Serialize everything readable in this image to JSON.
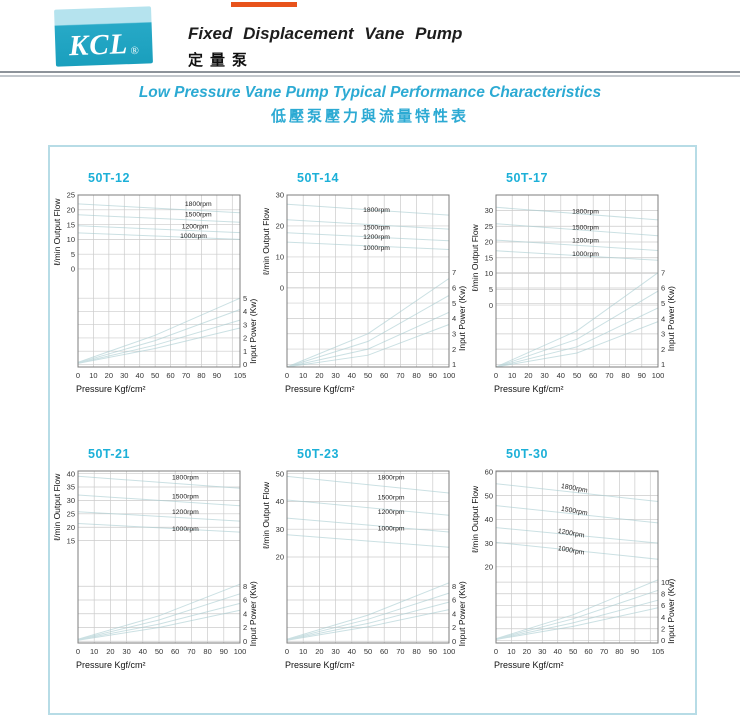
{
  "page": {
    "background": "#ffffff"
  },
  "top_accent": {
    "color": "#e8531b"
  },
  "header": {
    "logo_text": "KCL",
    "logo_reg": "®",
    "title_en": "Fixed Displacement Vane Pump",
    "title_zh": "定量泵",
    "logo_colors": {
      "top": "#b5e3ee",
      "bottom": "#1a9fbd"
    }
  },
  "section": {
    "title_en": "Low Pressure Vane Pump Typical Performance Characteristics",
    "title_zh": "低壓泵壓力與流量特性表",
    "accent_color": "#2caad3"
  },
  "panel": {
    "border_color": "#b7dce6"
  },
  "chart_style": {
    "grid_color": "#cbcbcb",
    "border_color": "#7c7c7c",
    "curve_color": "#a9cdd1",
    "tick_color": "#333333",
    "label_color": "#111111",
    "title_color": "#1cb0d8"
  },
  "chart_data": [
    {
      "type": "line",
      "title": "50T-12",
      "xlabel": "Pressure Kgf/cm²",
      "ylabel_left": "ℓ/min Output Flow",
      "ylabel_right": "Input Power (Kw)",
      "x_min": 0,
      "x_max": 105,
      "x_tick_vals": [
        0,
        10,
        20,
        30,
        40,
        50,
        60,
        70,
        80,
        90,
        105
      ],
      "x_grid": [
        10,
        20,
        30,
        40,
        50,
        60,
        70,
        80,
        90,
        100
      ],
      "flow_axis": {
        "ticks": [
          25,
          20,
          15,
          10,
          5,
          0
        ],
        "v1": 25,
        "f1": 0.0,
        "v2": 0,
        "f2": 0.43
      },
      "power_axis": {
        "ticks": [
          5,
          4,
          3,
          2,
          1,
          0
        ],
        "v1": 5,
        "f1": 0.6,
        "v2": 0,
        "f2": 0.985
      },
      "legend": [
        {
          "label": "1800rpm",
          "fx": 0.66,
          "fy": 0.065
        },
        {
          "label": "1500rpm",
          "fx": 0.66,
          "fy": 0.125
        },
        {
          "label": "1200rpm",
          "fx": 0.64,
          "fy": 0.195
        },
        {
          "label": "1000rpm",
          "fx": 0.63,
          "fy": 0.25
        }
      ],
      "legend_rotation": 0,
      "series": [
        {
          "name": "1800rpm",
          "flow": [
            [
              0,
              22
            ],
            [
              105,
              19
            ]
          ],
          "power": [
            [
              0,
              0.15
            ],
            [
              50,
              2.2
            ],
            [
              105,
              5.0
            ]
          ]
        },
        {
          "name": "1500rpm",
          "flow": [
            [
              0,
              18.3
            ],
            [
              105,
              15.8
            ]
          ],
          "power": [
            [
              0,
              0.12
            ],
            [
              50,
              1.8
            ],
            [
              105,
              4.15
            ]
          ]
        },
        {
          "name": "1200rpm",
          "flow": [
            [
              0,
              14.6
            ],
            [
              105,
              12.3
            ]
          ],
          "power": [
            [
              0,
              0.1
            ],
            [
              50,
              1.45
            ],
            [
              105,
              3.35
            ]
          ]
        },
        {
          "name": "1000rpm",
          "flow": [
            [
              0,
              12.2
            ],
            [
              105,
              10.0
            ]
          ],
          "power": [
            [
              0,
              0.08
            ],
            [
              50,
              1.2
            ],
            [
              105,
              2.75
            ]
          ]
        }
      ]
    },
    {
      "type": "line",
      "title": "50T-14",
      "xlabel": "Pressure Kgf/cm²",
      "ylabel_left": "ℓ/min Output Flow",
      "ylabel_right": "Input Power (Kw)",
      "x_min": 0,
      "x_max": 100,
      "x_tick_vals": [
        0,
        10,
        20,
        30,
        40,
        50,
        60,
        70,
        80,
        90,
        100
      ],
      "x_grid": [
        10,
        20,
        30,
        40,
        50,
        60,
        70,
        80,
        90
      ],
      "flow_axis": {
        "ticks": [
          30,
          20,
          10,
          0
        ],
        "v1": 30,
        "f1": 0.0,
        "v2": 0,
        "f2": 0.54
      },
      "power_axis": {
        "ticks": [
          7,
          6,
          5,
          4,
          3,
          2,
          1
        ],
        "v1": 7,
        "f1": 0.45,
        "v2": 1,
        "f2": 0.985
      },
      "legend": [
        {
          "label": "1800rpm",
          "fx": 0.47,
          "fy": 0.1
        },
        {
          "label": "1500rpm",
          "fx": 0.47,
          "fy": 0.2
        },
        {
          "label": "1200rpm",
          "fx": 0.47,
          "fy": 0.255
        },
        {
          "label": "1000rpm",
          "fx": 0.47,
          "fy": 0.32
        }
      ],
      "legend_rotation": 0,
      "series": [
        {
          "name": "1800rpm",
          "flow": [
            [
              0,
              27
            ],
            [
              100,
              23.5
            ]
          ],
          "power": [
            [
              0,
              0.2
            ],
            [
              50,
              3.0
            ],
            [
              100,
              6.6
            ]
          ]
        },
        {
          "name": "1500rpm",
          "flow": [
            [
              0,
              22
            ],
            [
              100,
              19
            ]
          ],
          "power": [
            [
              0,
              0.18
            ],
            [
              50,
              2.5
            ],
            [
              100,
              5.5
            ]
          ]
        },
        {
          "name": "1200rpm",
          "flow": [
            [
              0,
              17.8
            ],
            [
              100,
              15.2
            ]
          ],
          "power": [
            [
              0,
              0.15
            ],
            [
              50,
              2.0
            ],
            [
              100,
              4.4
            ]
          ]
        },
        {
          "name": "1000rpm",
          "flow": [
            [
              0,
              14.8
            ],
            [
              100,
              12.4
            ]
          ],
          "power": [
            [
              0,
              0.12
            ],
            [
              50,
              1.6
            ],
            [
              100,
              3.6
            ]
          ]
        }
      ]
    },
    {
      "type": "line",
      "title": "50T-17",
      "xlabel": "Pressure Kgf/cm²",
      "ylabel_left": "ℓ/min Output Flow",
      "ylabel_right": "Input Power (Kw)",
      "x_min": 0,
      "x_max": 100,
      "x_tick_vals": [
        0,
        10,
        20,
        30,
        40,
        50,
        60,
        70,
        80,
        90,
        100
      ],
      "x_grid": [
        10,
        20,
        30,
        40,
        50,
        60,
        70,
        80,
        90
      ],
      "flow_axis": {
        "ticks": [
          30,
          25,
          20,
          15,
          10,
          5,
          0
        ],
        "v1": 30,
        "f1": 0.09,
        "v2": 0,
        "f2": 0.64
      },
      "power_axis": {
        "ticks": [
          7,
          6,
          5,
          4,
          3,
          2,
          1
        ],
        "v1": 7,
        "f1": 0.452,
        "v2": 1,
        "f2": 0.985
      },
      "legend": [
        {
          "label": "1800rpm",
          "fx": 0.47,
          "fy": 0.107
        },
        {
          "label": "1500rpm",
          "fx": 0.47,
          "fy": 0.2
        },
        {
          "label": "1200rpm",
          "fx": 0.47,
          "fy": 0.275
        },
        {
          "label": "1000rpm",
          "fx": 0.47,
          "fy": 0.355
        }
      ],
      "legend_rotation": 0,
      "series": [
        {
          "name": "1800rpm",
          "flow": [
            [
              0,
              31
            ],
            [
              100,
              27
            ]
          ],
          "power": [
            [
              0,
              0.2
            ],
            [
              50,
              3.2
            ],
            [
              100,
              7.0
            ]
          ]
        },
        {
          "name": "1500rpm",
          "flow": [
            [
              0,
              25.8
            ],
            [
              100,
              22
            ]
          ],
          "power": [
            [
              0,
              0.18
            ],
            [
              50,
              2.65
            ],
            [
              100,
              5.8
            ]
          ]
        },
        {
          "name": "1200rpm",
          "flow": [
            [
              0,
              20.6
            ],
            [
              100,
              17.3
            ]
          ],
          "power": [
            [
              0,
              0.15
            ],
            [
              50,
              2.15
            ],
            [
              100,
              4.7
            ]
          ]
        },
        {
          "name": "1000rpm",
          "flow": [
            [
              0,
              17.2
            ],
            [
              100,
              14.2
            ]
          ],
          "power": [
            [
              0,
              0.12
            ],
            [
              50,
              1.75
            ],
            [
              100,
              3.8
            ]
          ]
        }
      ]
    },
    {
      "type": "line",
      "title": "50T-21",
      "xlabel": "Pressure Kgf/cm²",
      "ylabel_left": "ℓ/min Output Flow",
      "ylabel_right": "Input Power (Kw)",
      "x_min": 0,
      "x_max": 100,
      "x_tick_vals": [
        0,
        10,
        20,
        30,
        40,
        50,
        60,
        70,
        80,
        90,
        100
      ],
      "x_grid": [
        10,
        20,
        30,
        40,
        50,
        60,
        70,
        80,
        90
      ],
      "flow_axis": {
        "ticks": [
          40,
          35,
          30,
          25,
          20,
          15
        ],
        "v1": 40,
        "f1": 0.015,
        "v2": 15,
        "f2": 0.405
      },
      "power_axis": {
        "ticks": [
          8,
          6,
          4,
          2,
          0
        ],
        "v1": 8,
        "f1": 0.67,
        "v2": 0,
        "f2": 0.99
      },
      "legend": [
        {
          "label": "1800rpm",
          "fx": 0.58,
          "fy": 0.05
        },
        {
          "label": "1500rpm",
          "fx": 0.58,
          "fy": 0.16
        },
        {
          "label": "1200rpm",
          "fx": 0.58,
          "fy": 0.25
        },
        {
          "label": "1000rpm",
          "fx": 0.58,
          "fy": 0.35
        }
      ],
      "legend_rotation": 0,
      "series": [
        {
          "name": "1800rpm",
          "flow": [
            [
              0,
              39
            ],
            [
              100,
              34.5
            ]
          ],
          "power": [
            [
              0,
              0.3
            ],
            [
              50,
              3.7
            ],
            [
              100,
              8.3
            ]
          ]
        },
        {
          "name": "1500rpm",
          "flow": [
            [
              0,
              32
            ],
            [
              100,
              28
            ]
          ],
          "power": [
            [
              0,
              0.25
            ],
            [
              50,
              3.1
            ],
            [
              100,
              6.9
            ]
          ]
        },
        {
          "name": "1200rpm",
          "flow": [
            [
              0,
              25.8
            ],
            [
              100,
              22.3
            ]
          ],
          "power": [
            [
              0,
              0.2
            ],
            [
              50,
              2.5
            ],
            [
              100,
              5.5
            ]
          ]
        },
        {
          "name": "1000rpm",
          "flow": [
            [
              0,
              21.4
            ],
            [
              100,
              18.2
            ]
          ],
          "power": [
            [
              0,
              0.15
            ],
            [
              50,
              2.0
            ],
            [
              100,
              4.5
            ]
          ]
        }
      ]
    },
    {
      "type": "line",
      "title": "50T-23",
      "xlabel": "Pressure Kgf/cm²",
      "ylabel_left": "ℓ/min Output Flow",
      "ylabel_right": "Input Power (Kw)",
      "x_min": 0,
      "x_max": 100,
      "x_tick_vals": [
        0,
        10,
        20,
        30,
        40,
        50,
        60,
        70,
        80,
        90,
        100
      ],
      "x_grid": [
        10,
        20,
        30,
        40,
        50,
        60,
        70,
        80,
        90
      ],
      "flow_axis": {
        "ticks": [
          50,
          40,
          30,
          20
        ],
        "v1": 50,
        "f1": 0.015,
        "v2": 20,
        "f2": 0.5
      },
      "power_axis": {
        "ticks": [
          8,
          6,
          4,
          2,
          0
        ],
        "v1": 8,
        "f1": 0.67,
        "v2": 0,
        "f2": 0.99
      },
      "legend": [
        {
          "label": "1800rpm",
          "fx": 0.56,
          "fy": 0.05
        },
        {
          "label": "1500rpm",
          "fx": 0.56,
          "fy": 0.165
        },
        {
          "label": "1200rpm",
          "fx": 0.56,
          "fy": 0.25
        },
        {
          "label": "1000rpm",
          "fx": 0.56,
          "fy": 0.345
        }
      ],
      "legend_rotation": 0,
      "series": [
        {
          "name": "1800rpm",
          "flow": [
            [
              0,
              49
            ],
            [
              100,
              43
            ]
          ],
          "power": [
            [
              0,
              0.3
            ],
            [
              50,
              3.8
            ],
            [
              100,
              8.5
            ]
          ]
        },
        {
          "name": "1500rpm",
          "flow": [
            [
              0,
              40.5
            ],
            [
              100,
              35
            ]
          ],
          "power": [
            [
              0,
              0.25
            ],
            [
              50,
              3.2
            ],
            [
              100,
              7.0
            ]
          ]
        },
        {
          "name": "1200rpm",
          "flow": [
            [
              0,
              34
            ],
            [
              100,
              29
            ]
          ],
          "power": [
            [
              0,
              0.2
            ],
            [
              50,
              2.6
            ],
            [
              100,
              5.7
            ]
          ]
        },
        {
          "name": "1000rpm",
          "flow": [
            [
              0,
              28
            ],
            [
              100,
              23.5
            ]
          ],
          "power": [
            [
              0,
              0.15
            ],
            [
              50,
              2.1
            ],
            [
              100,
              4.6
            ]
          ]
        }
      ]
    },
    {
      "type": "line",
      "title": "50T-30",
      "xlabel": "Pressure Kgf/cm²",
      "ylabel_left": "ℓ/min Output Flow",
      "ylabel_right": "Input Power (Kw)",
      "x_min": 0,
      "x_max": 105,
      "x_tick_vals": [
        0,
        10,
        20,
        30,
        40,
        50,
        60,
        70,
        80,
        90,
        105
      ],
      "x_grid": [
        10,
        20,
        30,
        40,
        50,
        60,
        70,
        80,
        90,
        100
      ],
      "flow_axis": {
        "ticks": [
          60,
          50,
          40,
          30,
          20
        ],
        "v1": 60,
        "f1": 0.005,
        "v2": 20,
        "f2": 0.557
      },
      "power_axis": {
        "ticks": [
          10,
          8,
          6,
          4,
          2,
          0
        ],
        "v1": 10,
        "f1": 0.646,
        "v2": 0,
        "f2": 0.985
      },
      "legend": [
        {
          "label": "1800rpm",
          "fx": 0.4,
          "fy": 0.098
        },
        {
          "label": "1500rpm",
          "fx": 0.4,
          "fy": 0.23
        },
        {
          "label": "1200rpm",
          "fx": 0.38,
          "fy": 0.36
        },
        {
          "label": "1000rpm",
          "fx": 0.38,
          "fy": 0.46
        }
      ],
      "legend_rotation": 10,
      "series": [
        {
          "name": "1800rpm",
          "flow": [
            [
              0,
              55
            ],
            [
              105,
              47.5
            ]
          ],
          "power": [
            [
              0,
              0.3
            ],
            [
              50,
              4.4
            ],
            [
              105,
              10.4
            ]
          ]
        },
        {
          "name": "1500rpm",
          "flow": [
            [
              0,
              45.8
            ],
            [
              105,
              38.5
            ]
          ],
          "power": [
            [
              0,
              0.25
            ],
            [
              50,
              3.7
            ],
            [
              105,
              8.6
            ]
          ]
        },
        {
          "name": "1200rpm",
          "flow": [
            [
              0,
              36.5
            ],
            [
              105,
              30
            ]
          ],
          "power": [
            [
              0,
              0.2
            ],
            [
              50,
              3.0
            ],
            [
              105,
              6.9
            ]
          ]
        },
        {
          "name": "1000rpm",
          "flow": [
            [
              0,
              30.3
            ],
            [
              105,
              23.2
            ]
          ],
          "power": [
            [
              0,
              0.15
            ],
            [
              50,
              2.4
            ],
            [
              105,
              5.6
            ]
          ]
        }
      ]
    }
  ]
}
